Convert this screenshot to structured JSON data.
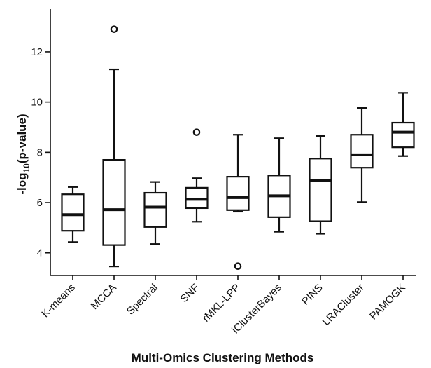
{
  "chart_data": {
    "type": "box",
    "xlabel": "Multi-Omics Clustering Methods",
    "ylabel_prefix": "-log",
    "ylabel_sub": "10",
    "ylabel_suffix": "(p-value)",
    "ylim": [
      3.1,
      13.7
    ],
    "yticks": [
      4,
      6,
      8,
      10,
      12
    ],
    "grid": false,
    "categories": [
      "K-means",
      "MCCA",
      "Spectral",
      "SNF",
      "rMKL-LPP",
      "iClusterBayes",
      "PINS",
      "LRACluster",
      "PAMOGK"
    ],
    "boxes": [
      {
        "whisker_low": 4.43,
        "q1": 4.88,
        "median": 5.52,
        "q3": 6.33,
        "whisker_high": 6.62,
        "outliers": []
      },
      {
        "whisker_low": 3.46,
        "q1": 4.31,
        "median": 5.72,
        "q3": 7.7,
        "whisker_high": 11.3,
        "outliers": [
          12.9
        ]
      },
      {
        "whisker_low": 4.35,
        "q1": 5.03,
        "median": 5.82,
        "q3": 6.39,
        "whisker_high": 6.82,
        "outliers": []
      },
      {
        "whisker_low": 5.24,
        "q1": 5.78,
        "median": 6.13,
        "q3": 6.59,
        "whisker_high": 6.97,
        "outliers": [
          8.8
        ]
      },
      {
        "whisker_low": 5.64,
        "q1": 5.7,
        "median": 6.2,
        "q3": 7.03,
        "whisker_high": 8.7,
        "outliers": [
          3.47
        ]
      },
      {
        "whisker_low": 4.84,
        "q1": 5.42,
        "median": 6.27,
        "q3": 7.08,
        "whisker_high": 8.56,
        "outliers": []
      },
      {
        "whisker_low": 4.76,
        "q1": 5.26,
        "median": 6.87,
        "q3": 7.75,
        "whisker_high": 8.65,
        "outliers": []
      },
      {
        "whisker_low": 6.02,
        "q1": 7.39,
        "median": 7.9,
        "q3": 8.7,
        "whisker_high": 9.77,
        "outliers": []
      },
      {
        "whisker_low": 7.85,
        "q1": 8.2,
        "median": 8.8,
        "q3": 9.18,
        "whisker_high": 10.37,
        "outliers": []
      }
    ]
  }
}
